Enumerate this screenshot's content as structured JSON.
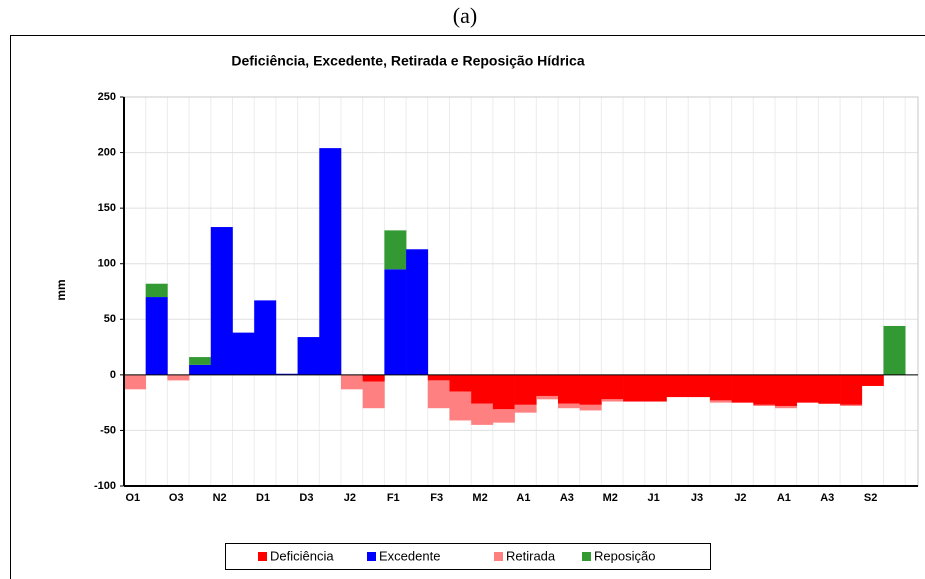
{
  "chart_data": {
    "type": "bar",
    "stacked": true,
    "panel_label": "(a)",
    "title": "Deficiência, Excedente, Retirada e Reposição Hídrica",
    "y_label": "mm",
    "categories": [
      "O1",
      null,
      "O3",
      null,
      "N2",
      null,
      "D1",
      null,
      "D3",
      null,
      "J2",
      null,
      "F1",
      null,
      "F3",
      null,
      "M2",
      null,
      "A1",
      null,
      "A3",
      null,
      "M2",
      null,
      "J1",
      null,
      "J3",
      null,
      "J2",
      null,
      "A1",
      null,
      "A3",
      null,
      "S2",
      null
    ],
    "series": [
      {
        "name": "Deficiência",
        "color": "#ff0000",
        "values": [
          null,
          null,
          null,
          null,
          null,
          null,
          null,
          null,
          null,
          null,
          null,
          -6,
          null,
          null,
          -5,
          -15,
          -26,
          -31,
          -27,
          -19,
          -26,
          -27,
          -22,
          -24,
          -24,
          -20,
          -20,
          -23,
          -25,
          -27,
          -28,
          -25,
          -26,
          -27,
          -10,
          null
        ]
      },
      {
        "name": "Excedente",
        "color": "#0000ff",
        "values": [
          null,
          70,
          null,
          9,
          133,
          38,
          67,
          1,
          34,
          204,
          null,
          null,
          95,
          113,
          null,
          null,
          null,
          null,
          null,
          null,
          null,
          null,
          null,
          null,
          null,
          null,
          null,
          null,
          null,
          null,
          null,
          null,
          null,
          null,
          null,
          null
        ]
      },
      {
        "name": "Retirada",
        "color": "#ff8080",
        "values": [
          -13,
          null,
          -5,
          null,
          null,
          null,
          null,
          null,
          null,
          null,
          -13,
          -24,
          null,
          null,
          -25,
          -26,
          -19,
          -12,
          -7,
          -3,
          -4,
          -5,
          -2,
          null,
          null,
          null,
          null,
          -2,
          null,
          -1,
          -2,
          null,
          null,
          -1,
          null,
          null
        ]
      },
      {
        "name": "Reposição",
        "color": "#339933",
        "values": [
          null,
          12,
          null,
          7,
          null,
          null,
          null,
          null,
          null,
          null,
          null,
          null,
          35,
          null,
          null,
          null,
          null,
          null,
          null,
          null,
          null,
          null,
          null,
          null,
          null,
          null,
          null,
          null,
          null,
          null,
          null,
          null,
          null,
          null,
          null,
          44
        ]
      }
    ],
    "ylim": [
      -100,
      250
    ],
    "yticks": [
      -100,
      -50,
      0,
      50,
      100,
      150,
      200,
      250
    ],
    "grid": true,
    "legend": "bottom"
  }
}
